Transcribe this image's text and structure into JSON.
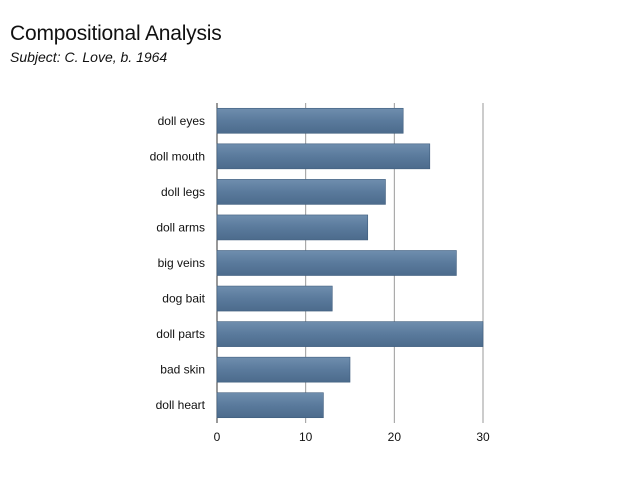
{
  "chart_data": {
    "type": "bar",
    "orientation": "horizontal",
    "title": "Compositional Analysis",
    "subtitle": "Subject: C. Love, b. 1964",
    "categories": [
      "doll eyes",
      "doll mouth",
      "doll legs",
      "doll arms",
      "big veins",
      "dog bait",
      "doll parts",
      "bad skin",
      "doll heart"
    ],
    "values": [
      21,
      24,
      19,
      17,
      27,
      13,
      30,
      15,
      12
    ],
    "xlim": [
      0,
      30
    ],
    "xticks": [
      "0",
      "10",
      "20",
      "30"
    ],
    "grid": true,
    "bar_color": "#5a7a9c"
  }
}
